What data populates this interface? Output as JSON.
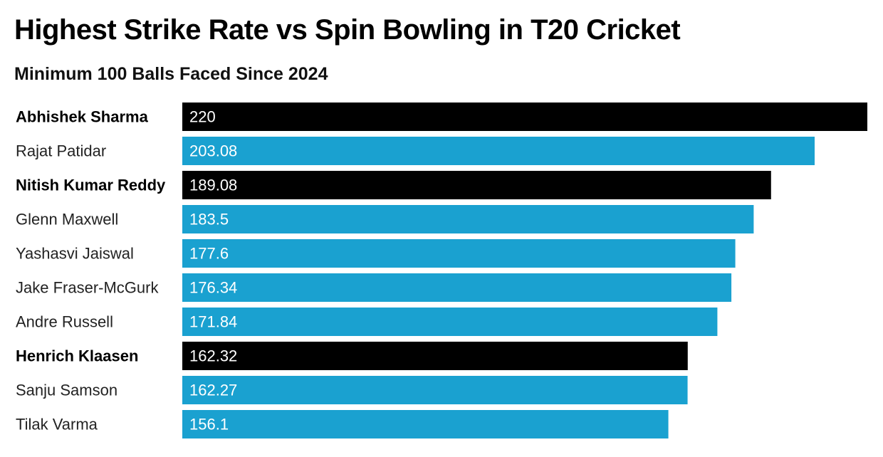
{
  "chart_data": {
    "type": "bar",
    "orientation": "horizontal",
    "title": "Highest Strike Rate vs Spin Bowling in T20 Cricket",
    "subtitle": "Minimum 100 Balls Faced Since 2024",
    "xlabel": "",
    "ylabel": "",
    "xlim": [
      0,
      220
    ],
    "grid": false,
    "legend": "none",
    "colors": {
      "highlight": "#000000",
      "default": "#1aa1d0"
    },
    "categories": [
      "Abhishek Sharma",
      "Rajat Patidar",
      "Nitish Kumar Reddy",
      "Glenn Maxwell",
      "Yashasvi Jaiswal",
      "Jake Fraser-McGurk",
      "Andre Russell",
      "Henrich Klaasen",
      "Sanju Samson",
      "Tilak Varma"
    ],
    "values": [
      220,
      203.08,
      189.08,
      183.5,
      177.6,
      176.34,
      171.84,
      162.32,
      162.27,
      156.1
    ],
    "value_labels": [
      "220",
      "203.08",
      "189.08",
      "183.5",
      "177.6",
      "176.34",
      "171.84",
      "162.32",
      "162.27",
      "156.1"
    ],
    "highlighted": [
      true,
      false,
      true,
      false,
      false,
      false,
      false,
      true,
      false,
      false
    ]
  }
}
